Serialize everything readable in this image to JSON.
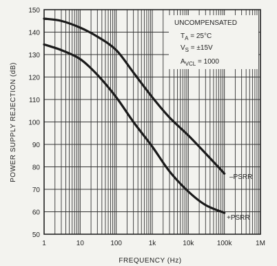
{
  "chart_data": {
    "type": "line",
    "x_scale": "log",
    "xlabel": "FREQUENCY (Hz)",
    "ylabel": "POWER SUPPLY REJECTION (dB)",
    "xlim": [
      1,
      1000000
    ],
    "ylim": [
      50,
      150
    ],
    "grid": true,
    "x_ticks": [
      {
        "value": 1,
        "label": "1"
      },
      {
        "value": 10,
        "label": "10"
      },
      {
        "value": 100,
        "label": "100"
      },
      {
        "value": 1000,
        "label": "1k"
      },
      {
        "value": 10000,
        "label": "10k"
      },
      {
        "value": 100000,
        "label": "100k"
      },
      {
        "value": 1000000,
        "label": "1M"
      }
    ],
    "y_ticks": [
      50,
      60,
      70,
      80,
      90,
      100,
      110,
      120,
      130,
      140,
      150
    ],
    "annotations": {
      "title": "UNCOMPENSATED",
      "ta": {
        "sym": "T",
        "sub": "A",
        "val": " = 25°C"
      },
      "vs": {
        "sym": "V",
        "sub": "S",
        "val": " = ±15V"
      },
      "avcl": {
        "sym": "A",
        "sub": "VCL",
        "val": " = 1000"
      }
    },
    "series": [
      {
        "name": "–PSRR",
        "x": [
          1,
          3,
          10,
          30,
          100,
          300,
          1000,
          3000,
          10000,
          30000,
          100000
        ],
        "y": [
          146,
          145,
          142,
          138,
          132,
          122,
          111,
          102,
          94,
          86,
          77
        ]
      },
      {
        "name": "+PSRR",
        "x": [
          1,
          3,
          10,
          30,
          100,
          300,
          1000,
          3000,
          10000,
          30000,
          100000
        ],
        "y": [
          134.5,
          132,
          128,
          121,
          111,
          100,
          89,
          78,
          69,
          63,
          59.5
        ]
      }
    ]
  }
}
